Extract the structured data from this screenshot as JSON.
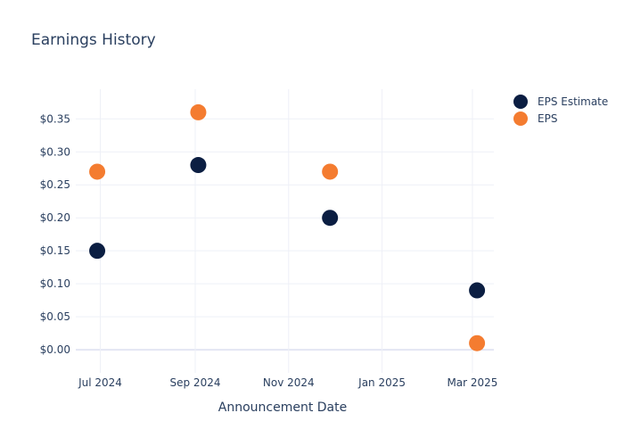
{
  "chart_data": {
    "type": "scatter",
    "title": "Earnings History",
    "xlabel": "Announcement Date",
    "ylabel": "",
    "x_ticks": [
      "Jul 2024",
      "Sep 2024",
      "Nov 2024",
      "Jan 2025",
      "Mar 2025"
    ],
    "y_ticks": [
      "$0.00",
      "$0.05",
      "$0.10",
      "$0.15",
      "$0.20",
      "$0.25",
      "$0.30",
      "$0.35"
    ],
    "y_tick_values": [
      0,
      0.05,
      0.1,
      0.15,
      0.2,
      0.25,
      0.3,
      0.35
    ],
    "x_tick_dates": [
      "2024-07-01",
      "2024-09-01",
      "2024-11-01",
      "2025-01-01",
      "2025-03-01"
    ],
    "xlim": [
      "2024-06-15",
      "2025-03-15"
    ],
    "ylim": [
      -0.035,
      0.395
    ],
    "grid": true,
    "legend_position": "top-right",
    "series": [
      {
        "name": "EPS Estimate",
        "color": "#0b1e42",
        "points": [
          {
            "x": "2024-06-29",
            "y": 0.15
          },
          {
            "x": "2024-09-03",
            "y": 0.28
          },
          {
            "x": "2024-11-28",
            "y": 0.2
          },
          {
            "x": "2025-03-04",
            "y": 0.09
          }
        ]
      },
      {
        "name": "EPS",
        "color": "#f47c30",
        "points": [
          {
            "x": "2024-06-29",
            "y": 0.27
          },
          {
            "x": "2024-09-03",
            "y": 0.36
          },
          {
            "x": "2024-11-28",
            "y": 0.27
          },
          {
            "x": "2025-03-04",
            "y": 0.01
          }
        ]
      }
    ]
  }
}
